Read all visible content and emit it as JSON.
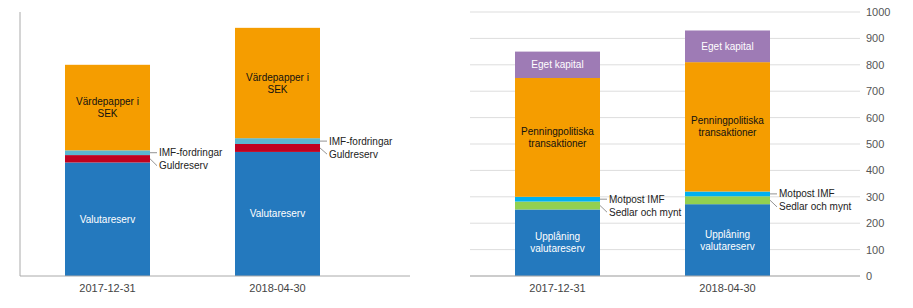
{
  "chart_data": [
    {
      "type": "bar",
      "stacked": true,
      "categories": [
        "2017-12-31",
        "2018-04-30"
      ],
      "series": [
        {
          "name": "Valutareserv",
          "color": "#2479BE",
          "values": [
            430,
            470
          ]
        },
        {
          "name": "Guldreserv",
          "color": "#C0021F",
          "values": [
            28,
            30
          ]
        },
        {
          "name": "IMF-fordringar",
          "color": "#5BB7D0",
          "values": [
            18,
            22
          ]
        },
        {
          "name": "Värdepapper i\nSEK",
          "color": "#F59D00",
          "values": [
            324,
            418
          ]
        }
      ],
      "ylim": [
        0,
        1000
      ],
      "grid": false,
      "tick_labels": "x"
    },
    {
      "type": "bar",
      "stacked": true,
      "categories": [
        "2017-12-31",
        "2018-04-30"
      ],
      "series": [
        {
          "name": "Upplåning\nvalutareserv",
          "color": "#2479BE",
          "values": [
            252,
            272
          ]
        },
        {
          "name": "Sedlar och mynt",
          "color": "#92D050",
          "values": [
            30,
            30
          ]
        },
        {
          "name": "Motpost IMF",
          "color": "#00B0F0",
          "values": [
            18,
            18
          ]
        },
        {
          "name": "Penningpolitiska\ntransaktioner",
          "color": "#F59D00",
          "values": [
            450,
            490
          ]
        },
        {
          "name": "Eget kapital",
          "color": "#9E7BB5",
          "values": [
            100,
            120
          ]
        }
      ],
      "ylim": [
        0,
        1000
      ],
      "yticks": [
        0,
        100,
        200,
        300,
        400,
        500,
        600,
        700,
        800,
        900,
        1000
      ],
      "grid": true
    }
  ]
}
